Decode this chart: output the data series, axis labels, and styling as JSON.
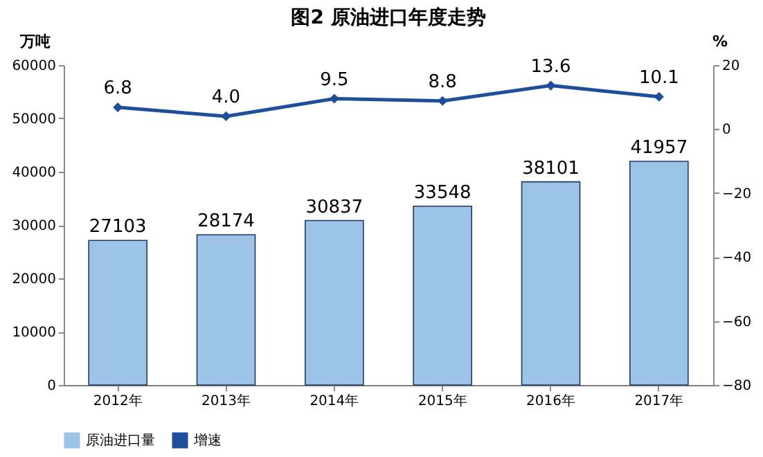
{
  "chart_data": {
    "type": "bar",
    "title": "图2  原油进口年度走势",
    "ylabel": "万吨",
    "y2label": "%",
    "categories": [
      "2012年",
      "2013年",
      "2014年",
      "2015年",
      "2016年",
      "2017年"
    ],
    "series": [
      {
        "name": "原油进口量",
        "color": "#9dc3e6",
        "values": [
          27103,
          28174,
          30837,
          33548,
          38101,
          41957
        ]
      },
      {
        "name": "增速",
        "type": "line",
        "axis": "y2",
        "color": "#1f4e9a",
        "values": [
          6.8,
          4.0,
          9.5,
          8.8,
          13.6,
          10.1
        ],
        "value_labels": [
          "6.8",
          "4.0",
          "9.5",
          "8.8",
          "13.6",
          "10.1"
        ]
      }
    ],
    "ylim": [
      0,
      60000
    ],
    "yticks": [
      0,
      10000,
      20000,
      30000,
      40000,
      50000,
      60000
    ],
    "y2lim": [
      -80,
      20
    ],
    "y2ticks": [
      -80,
      -60,
      -40,
      -20,
      0,
      20
    ],
    "data_labels": true,
    "legend": "bottom",
    "grid": false,
    "marker": "diamond",
    "line_style": "solid"
  }
}
